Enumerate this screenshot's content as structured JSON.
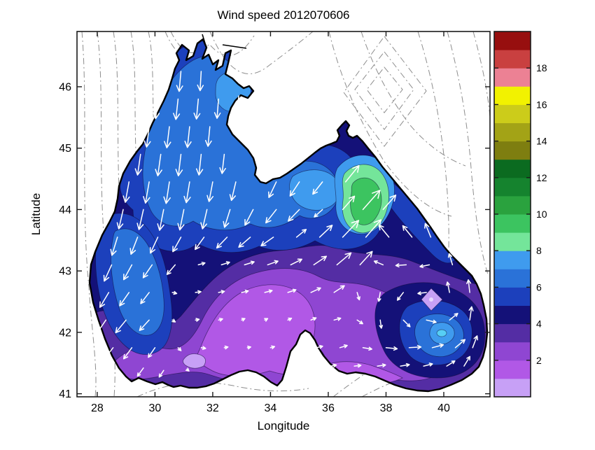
{
  "chart_data": {
    "type": "quiver-contour-map",
    "title": "Wind speed 2012070606",
    "xlabel": "Longitude",
    "ylabel": "Latitude",
    "xlim": [
      27.3,
      41.6
    ],
    "ylim": [
      40.95,
      46.9
    ],
    "xticks": [
      28,
      30,
      32,
      34,
      36,
      38,
      40
    ],
    "yticks": [
      41,
      42,
      43,
      44,
      45,
      46
    ],
    "grid": false,
    "colorbar": {
      "range": [
        0,
        20
      ],
      "ticks": [
        2,
        4,
        6,
        8,
        10,
        12,
        14,
        16,
        18
      ],
      "band_colors": [
        "#c7a0f6",
        "#b158e6",
        "#8f46d2",
        "#542da4",
        "#141178",
        "#1c40bc",
        "#2a72d8",
        "#3f9bee",
        "#74e59a",
        "#3cc460",
        "#2aa23e",
        "#15832e",
        "#0b6b20",
        "#7e7e10",
        "#a3a316",
        "#cccc1a",
        "#f2f200",
        "#ec8194",
        "#c94040",
        "#970f0f"
      ]
    },
    "wind_vectors": {
      "format": [
        "lon",
        "lat",
        "u",
        "v"
      ],
      "points": [
        [
          30.9,
          46.25,
          -0.5,
          -5.4
        ],
        [
          31.6,
          46.25,
          -0.3,
          -5.2
        ],
        [
          30.1,
          45.8,
          -0.6,
          -5.3
        ],
        [
          30.8,
          45.8,
          -0.6,
          -5.5
        ],
        [
          31.5,
          45.8,
          -0.5,
          -5.4
        ],
        [
          32.2,
          45.8,
          -0.4,
          -5.2
        ],
        [
          32.9,
          45.85,
          -0.4,
          -4.6
        ],
        [
          29.8,
          45.35,
          -0.7,
          -5.5
        ],
        [
          30.5,
          45.35,
          -0.7,
          -5.7
        ],
        [
          31.2,
          45.35,
          -0.6,
          -5.6
        ],
        [
          31.9,
          45.35,
          -0.5,
          -5.3
        ],
        [
          29.5,
          44.9,
          -0.8,
          -5.6
        ],
        [
          30.2,
          44.9,
          -0.8,
          -5.8
        ],
        [
          30.9,
          44.9,
          -0.7,
          -5.8
        ],
        [
          31.6,
          44.9,
          -0.6,
          -5.6
        ],
        [
          32.4,
          44.9,
          -0.6,
          -5.2
        ],
        [
          29.1,
          44.45,
          -1.0,
          -5.5
        ],
        [
          29.8,
          44.45,
          -1.0,
          -5.7
        ],
        [
          30.5,
          44.45,
          -0.9,
          -5.8
        ],
        [
          31.2,
          44.45,
          -0.9,
          -5.6
        ],
        [
          32.0,
          44.45,
          -1.0,
          -5.3
        ],
        [
          32.8,
          44.45,
          -1.2,
          -5.0
        ],
        [
          34.2,
          44.45,
          -2.0,
          -4.2
        ],
        [
          35.0,
          44.45,
          -2.5,
          -3.8
        ],
        [
          35.8,
          44.45,
          -2.6,
          -3.3
        ],
        [
          36.6,
          44.45,
          3.6,
          4.4
        ],
        [
          28.9,
          44.0,
          -1.2,
          -5.2
        ],
        [
          29.6,
          44.0,
          -1.2,
          -5.4
        ],
        [
          30.3,
          44.0,
          -1.1,
          -5.6
        ],
        [
          31.0,
          44.0,
          -1.1,
          -5.5
        ],
        [
          31.8,
          44.0,
          -1.2,
          -5.2
        ],
        [
          32.6,
          44.0,
          -1.5,
          -4.8
        ],
        [
          33.4,
          44.0,
          -2.2,
          -4.2
        ],
        [
          34.2,
          44.0,
          -2.8,
          -3.6
        ],
        [
          35.0,
          44.0,
          -3.0,
          -3.1
        ],
        [
          35.8,
          44.0,
          -2.2,
          -2.0
        ],
        [
          36.5,
          44.0,
          3.2,
          3.6
        ],
        [
          37.2,
          44.0,
          4.6,
          5.2
        ],
        [
          37.9,
          44.0,
          3.4,
          3.9
        ],
        [
          28.7,
          43.55,
          -1.5,
          -4.9
        ],
        [
          29.4,
          43.55,
          -1.8,
          -4.6
        ],
        [
          30.1,
          43.55,
          -2.0,
          -4.3
        ],
        [
          30.9,
          43.55,
          -2.2,
          -3.9
        ],
        [
          31.7,
          43.55,
          -2.4,
          -3.3
        ],
        [
          32.5,
          43.55,
          -2.8,
          -2.9
        ],
        [
          33.3,
          43.55,
          -3.1,
          -2.7
        ],
        [
          34.1,
          43.55,
          -3.3,
          -2.3
        ],
        [
          34.9,
          43.55,
          2.6,
          2.1
        ],
        [
          35.7,
          43.55,
          3.4,
          3.2
        ],
        [
          36.5,
          43.55,
          4.3,
          4.5
        ],
        [
          37.3,
          43.55,
          4.1,
          4.7
        ],
        [
          38.1,
          43.55,
          -2.7,
          3.3
        ],
        [
          38.9,
          43.55,
          -2.5,
          3.1
        ],
        [
          39.55,
          43.55,
          -1.5,
          3.7
        ],
        [
          28.5,
          43.1,
          -2.0,
          -4.4
        ],
        [
          29.2,
          43.1,
          -2.2,
          -4.0
        ],
        [
          29.9,
          43.1,
          -2.4,
          -3.5
        ],
        [
          30.7,
          43.1,
          -2.2,
          -2.6
        ],
        [
          31.5,
          43.1,
          1.8,
          0.5
        ],
        [
          32.3,
          43.1,
          2.2,
          0.7
        ],
        [
          33.1,
          43.1,
          2.6,
          0.8
        ],
        [
          33.9,
          43.1,
          2.8,
          1.0
        ],
        [
          34.7,
          43.1,
          3.0,
          1.5
        ],
        [
          35.5,
          43.1,
          3.4,
          2.3
        ],
        [
          36.3,
          43.1,
          3.8,
          3.2
        ],
        [
          37.1,
          43.1,
          3.3,
          3.6
        ],
        [
          37.9,
          43.1,
          -2.4,
          1.0
        ],
        [
          38.7,
          43.1,
          -2.8,
          -0.2
        ],
        [
          39.5,
          43.1,
          -2.5,
          -0.5
        ],
        [
          40.3,
          43.1,
          -0.9,
          3.0
        ],
        [
          28.4,
          42.65,
          -2.4,
          -4.0
        ],
        [
          29.1,
          42.65,
          -2.5,
          -3.6
        ],
        [
          29.8,
          42.65,
          -2.3,
          -3.0
        ],
        [
          30.6,
          42.65,
          1.2,
          -0.3
        ],
        [
          31.4,
          42.65,
          1.5,
          0.2
        ],
        [
          32.2,
          42.65,
          1.6,
          0.3
        ],
        [
          33.0,
          42.65,
          1.8,
          0.4
        ],
        [
          33.8,
          42.65,
          2.0,
          0.5
        ],
        [
          34.6,
          42.65,
          2.2,
          0.7
        ],
        [
          35.4,
          42.65,
          2.6,
          1.2
        ],
        [
          36.2,
          42.65,
          2.8,
          1.8
        ],
        [
          37.0,
          42.65,
          0.6,
          -2.0
        ],
        [
          37.8,
          42.65,
          -0.4,
          -2.4
        ],
        [
          38.6,
          42.65,
          -1.6,
          -2.1
        ],
        [
          39.4,
          42.65,
          -2.3,
          -0.3
        ],
        [
          40.2,
          42.65,
          -0.6,
          2.8
        ],
        [
          40.9,
          42.65,
          -0.4,
          3.4
        ],
        [
          28.3,
          42.2,
          -2.6,
          -3.8
        ],
        [
          29.0,
          42.2,
          -2.8,
          -3.4
        ],
        [
          29.8,
          42.2,
          -2.6,
          -2.8
        ],
        [
          30.6,
          42.2,
          0.8,
          -0.5
        ],
        [
          31.4,
          42.2,
          1.0,
          0.2
        ],
        [
          32.2,
          42.2,
          1.1,
          0.3
        ],
        [
          33.0,
          42.2,
          0.9,
          0.4
        ],
        [
          33.8,
          42.2,
          0.8,
          0.4
        ],
        [
          34.6,
          42.2,
          1.0,
          0.5
        ],
        [
          35.4,
          42.2,
          1.4,
          0.6
        ],
        [
          36.2,
          42.2,
          1.8,
          0.5
        ],
        [
          37.0,
          42.2,
          1.5,
          -1.0
        ],
        [
          37.8,
          42.2,
          0.3,
          -2.2
        ],
        [
          38.6,
          42.2,
          1.8,
          -1.8
        ],
        [
          39.4,
          42.2,
          2.6,
          -0.6
        ],
        [
          40.2,
          42.2,
          2.2,
          1.8
        ],
        [
          40.9,
          42.2,
          0.5,
          3.6
        ],
        [
          28.55,
          41.75,
          -2.5,
          -3.2
        ],
        [
          29.2,
          41.75,
          -2.2,
          -3.0
        ],
        [
          30.0,
          41.75,
          -1.8,
          -2.6
        ],
        [
          30.8,
          41.75,
          0.8,
          -0.8
        ],
        [
          31.6,
          41.75,
          1.2,
          -0.2
        ],
        [
          32.4,
          41.75,
          1.0,
          0.2
        ],
        [
          33.2,
          41.75,
          0.9,
          0.2
        ],
        [
          34.0,
          41.75,
          1.1,
          0.3
        ],
        [
          35.6,
          41.75,
          1.6,
          0.4
        ],
        [
          36.4,
          41.75,
          2.0,
          0.6
        ],
        [
          37.2,
          41.75,
          2.4,
          -0.4
        ],
        [
          38.0,
          41.75,
          3.0,
          -0.3
        ],
        [
          38.8,
          41.75,
          3.2,
          0.2
        ],
        [
          39.6,
          41.75,
          3.0,
          0.8
        ],
        [
          40.4,
          41.75,
          2.6,
          2.2
        ],
        [
          41.0,
          41.75,
          1.2,
          3.2
        ],
        [
          29.6,
          41.42,
          -1.6,
          -2.2
        ],
        [
          30.3,
          41.38,
          -1.2,
          -1.8
        ],
        [
          31.1,
          41.4,
          0.6,
          -0.5
        ],
        [
          36.1,
          41.45,
          1.4,
          0.3
        ],
        [
          36.9,
          41.45,
          1.8,
          0.2
        ],
        [
          37.7,
          41.45,
          2.2,
          0.3
        ],
        [
          38.5,
          41.45,
          2.4,
          0.4
        ],
        [
          39.3,
          41.45,
          2.4,
          0.6
        ],
        [
          40.1,
          41.45,
          2.2,
          1.4
        ],
        [
          40.7,
          41.45,
          1.6,
          2.6
        ]
      ]
    }
  }
}
